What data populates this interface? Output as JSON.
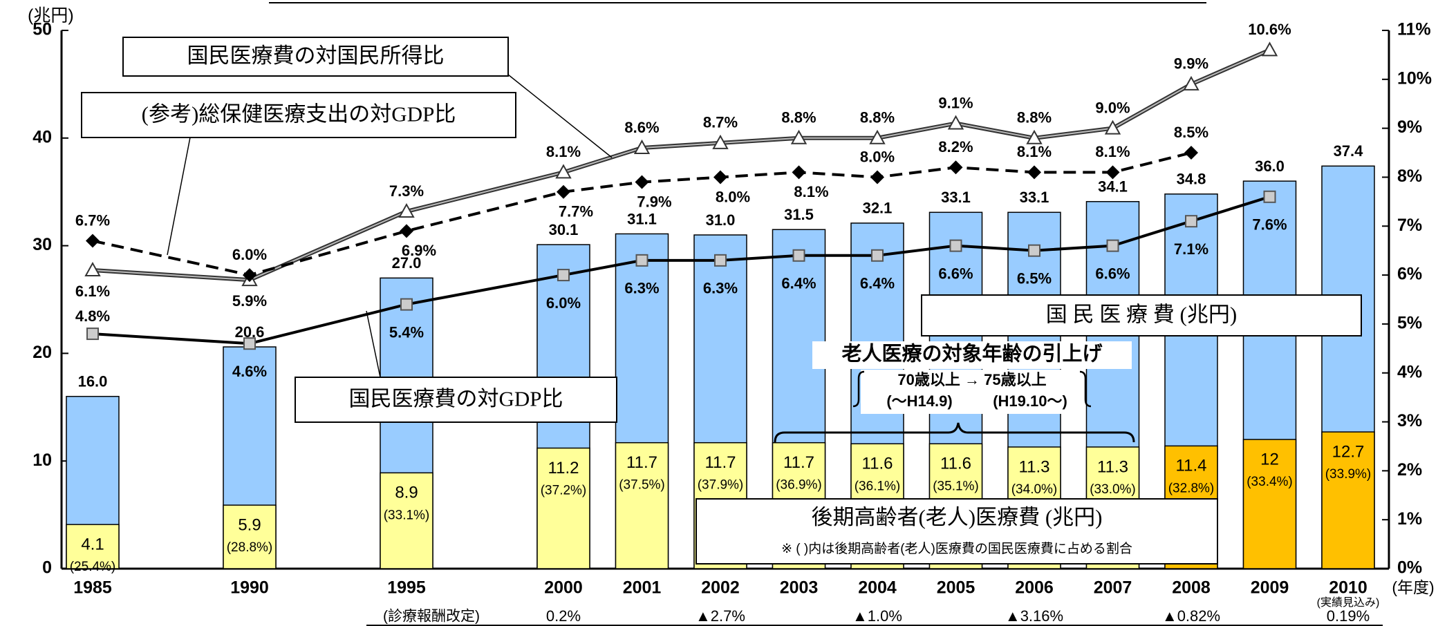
{
  "chart_data": {
    "type": "bar",
    "y_unit_label": "(兆円)",
    "x_unit_label": "(年度)",
    "categories": [
      "1985",
      "1990",
      "1995",
      "2000",
      "2001",
      "2002",
      "2003",
      "2004",
      "2005",
      "2006",
      "2007",
      "2008",
      "2009",
      "2010"
    ],
    "x_note": {
      "category": "2010",
      "label": "(実績見込み)"
    },
    "ylim": [
      0,
      50
    ],
    "yticks": [
      0,
      10,
      20,
      30,
      40,
      50
    ],
    "y2lim": [
      0,
      11
    ],
    "y2ticks": [
      {
        "value": 0,
        "label": "0%"
      },
      {
        "value": 1,
        "label": "1%"
      },
      {
        "value": 2,
        "label": "2%"
      },
      {
        "value": 3,
        "label": "3%"
      },
      {
        "value": 4,
        "label": "4%"
      },
      {
        "value": 5,
        "label": "5%"
      },
      {
        "value": 6,
        "label": "6%"
      },
      {
        "value": 7,
        "label": "7%"
      },
      {
        "value": 8,
        "label": "8%"
      },
      {
        "value": 9,
        "label": "9%"
      },
      {
        "value": 10,
        "label": "10%"
      },
      {
        "value": 11,
        "label": "11%"
      }
    ],
    "series": [
      {
        "name": "国 民 医 療 費 (兆円)",
        "color": "#99ccff",
        "values": [
          16.0,
          20.6,
          27.0,
          30.1,
          31.1,
          31.0,
          31.5,
          32.1,
          33.1,
          33.1,
          34.1,
          34.8,
          36.0,
          37.4
        ],
        "value_labels": [
          "16.0",
          "20.6",
          "27.0",
          "30.1",
          "31.1",
          "31.0",
          "31.5",
          "32.1",
          "33.1",
          "33.1",
          "34.1",
          "34.8",
          "36.0",
          "37.4"
        ]
      },
      {
        "name": "後期高齢者(老人)医療費 (兆円)",
        "note": "※ ( )内は後期高齢者(老人)医療費の国民医療費に占める割合",
        "colors": [
          "#ffff99",
          "#ffff99",
          "#ffff99",
          "#ffff99",
          "#ffff99",
          "#ffff99",
          "#ffff99",
          "#ffff99",
          "#ffff99",
          "#ffff99",
          "#ffff99",
          "#ffc000",
          "#ffc000",
          "#ffc000"
        ],
        "values": [
          4.1,
          5.9,
          8.9,
          11.2,
          11.7,
          11.7,
          11.7,
          11.6,
          11.6,
          11.3,
          11.3,
          11.4,
          12.0,
          12.7
        ],
        "share_labels": [
          "(25.4%)",
          "(28.8%)",
          "(33.1%)",
          "(37.2%)",
          "(37.5%)",
          "(37.9%)",
          "(36.9%)",
          "(36.1%)",
          "(35.1%)",
          "(34.0%)",
          "(33.0%)",
          "(32.8%)",
          "(33.4%)",
          "(33.9%)"
        ]
      },
      {
        "name": "国民医療費の対国民所得比",
        "axis": "y2",
        "marker": "triangle",
        "color": "#333333",
        "values": [
          6.1,
          5.9,
          7.3,
          8.1,
          8.6,
          8.7,
          8.8,
          8.8,
          9.1,
          8.8,
          9.0,
          9.9,
          10.6,
          null
        ],
        "value_labels": [
          "6.1%",
          "5.9%",
          "7.3%",
          "8.1%",
          "8.6%",
          "8.7%",
          "8.8%",
          "8.8%",
          "9.1%",
          "8.8%",
          "9.0%",
          "9.9%",
          "10.6%",
          null
        ]
      },
      {
        "name": "(参考)総保健医療支出の対GDP比",
        "axis": "y2",
        "marker": "diamond",
        "dashed": true,
        "color": "#000000",
        "values": [
          6.7,
          6.0,
          6.9,
          7.7,
          7.9,
          8.0,
          8.1,
          8.0,
          8.2,
          8.1,
          8.1,
          8.5,
          null,
          null
        ],
        "value_labels": [
          "6.7%",
          "6.0%",
          "6.9%",
          "7.7%",
          "7.9%",
          "8.0%",
          "8.1%",
          "8.0%",
          "8.2%",
          "8.1%",
          "8.1%",
          "8.5%",
          null,
          null
        ]
      },
      {
        "name": "国民医療費の対GDP比",
        "axis": "y2",
        "marker": "square",
        "color": "#000000",
        "values": [
          4.8,
          4.6,
          5.4,
          6.0,
          6.3,
          6.3,
          6.4,
          6.4,
          6.6,
          6.5,
          6.6,
          7.1,
          7.6,
          null
        ],
        "value_labels": [
          "4.8%",
          "4.6%",
          "5.4%",
          "6.0%",
          "6.3%",
          "6.3%",
          "6.4%",
          "6.4%",
          "6.6%",
          "6.5%",
          "6.6%",
          "7.1%",
          "7.6%",
          null
        ]
      }
    ],
    "annotations": {
      "age_change": {
        "title": "老人医療の対象年齢の引上げ",
        "from_to": "70歳以上 → 75歳以上",
        "from_period": "(〜H14.9)",
        "to_period": "(H19.10〜)"
      }
    },
    "fee_revisions": {
      "label": "(診療報酬改定)",
      "items": [
        {
          "category": "2000",
          "text": "0.2%"
        },
        {
          "category": "2002",
          "text": "▲2.7%"
        },
        {
          "category": "2004",
          "text": "▲1.0%"
        },
        {
          "category": "2006",
          "text": "▲3.16%"
        },
        {
          "category": "2008",
          "text": "▲0.82%"
        },
        {
          "category": "2010",
          "text": "0.19%"
        }
      ]
    }
  }
}
